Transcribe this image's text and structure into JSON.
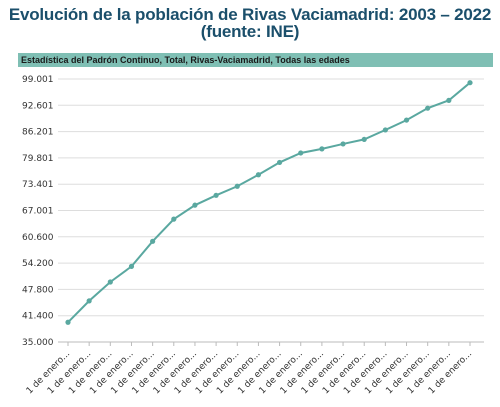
{
  "title": "Evolución de la población de Rivas Vaciamadrid: 2003 – 2022 (fuente: INE)",
  "subtitle": "Estadística del Padrón Continuo, Total, Rivas-Vaciamadrid, Todas las edades",
  "colors": {
    "line": "#5aa8a0",
    "marker": "#5aa8a0",
    "band": "#7fbfb4",
    "title": "#1b4f6b",
    "grid": "#dddddd"
  },
  "chart_data": {
    "type": "line",
    "title": "Evolución de la población de Rivas Vaciamadrid: 2003 – 2022 (fuente: INE)",
    "subtitle": "Estadística del Padrón Continuo, Total, Rivas-Vaciamadrid, Todas las edades",
    "xlabel": "",
    "ylabel": "",
    "grid": true,
    "ylim": [
      35000,
      99001
    ],
    "yticks": [
      "35.000",
      "41.400",
      "47.800",
      "54.200",
      "60.600",
      "67.001",
      "73.401",
      "79.801",
      "86.201",
      "92.601",
      "99.001"
    ],
    "categories": [
      "1 de enero...",
      "1 de enero...",
      "1 de enero...",
      "1 de enero...",
      "1 de enero...",
      "1 de enero...",
      "1 de enero...",
      "1 de enero...",
      "1 de enero...",
      "1 de enero...",
      "1 de enero...",
      "1 de enero...",
      "1 de enero...",
      "1 de enero...",
      "1 de enero...",
      "1 de enero...",
      "1 de enero...",
      "1 de enero...",
      "1 de enero...",
      "1 de enero..."
    ],
    "values": [
      39800,
      45000,
      49600,
      53400,
      59500,
      64900,
      68300,
      70700,
      72900,
      75700,
      78700,
      81000,
      82000,
      83200,
      84300,
      86600,
      89000,
      91900,
      93800,
      98100
    ]
  }
}
